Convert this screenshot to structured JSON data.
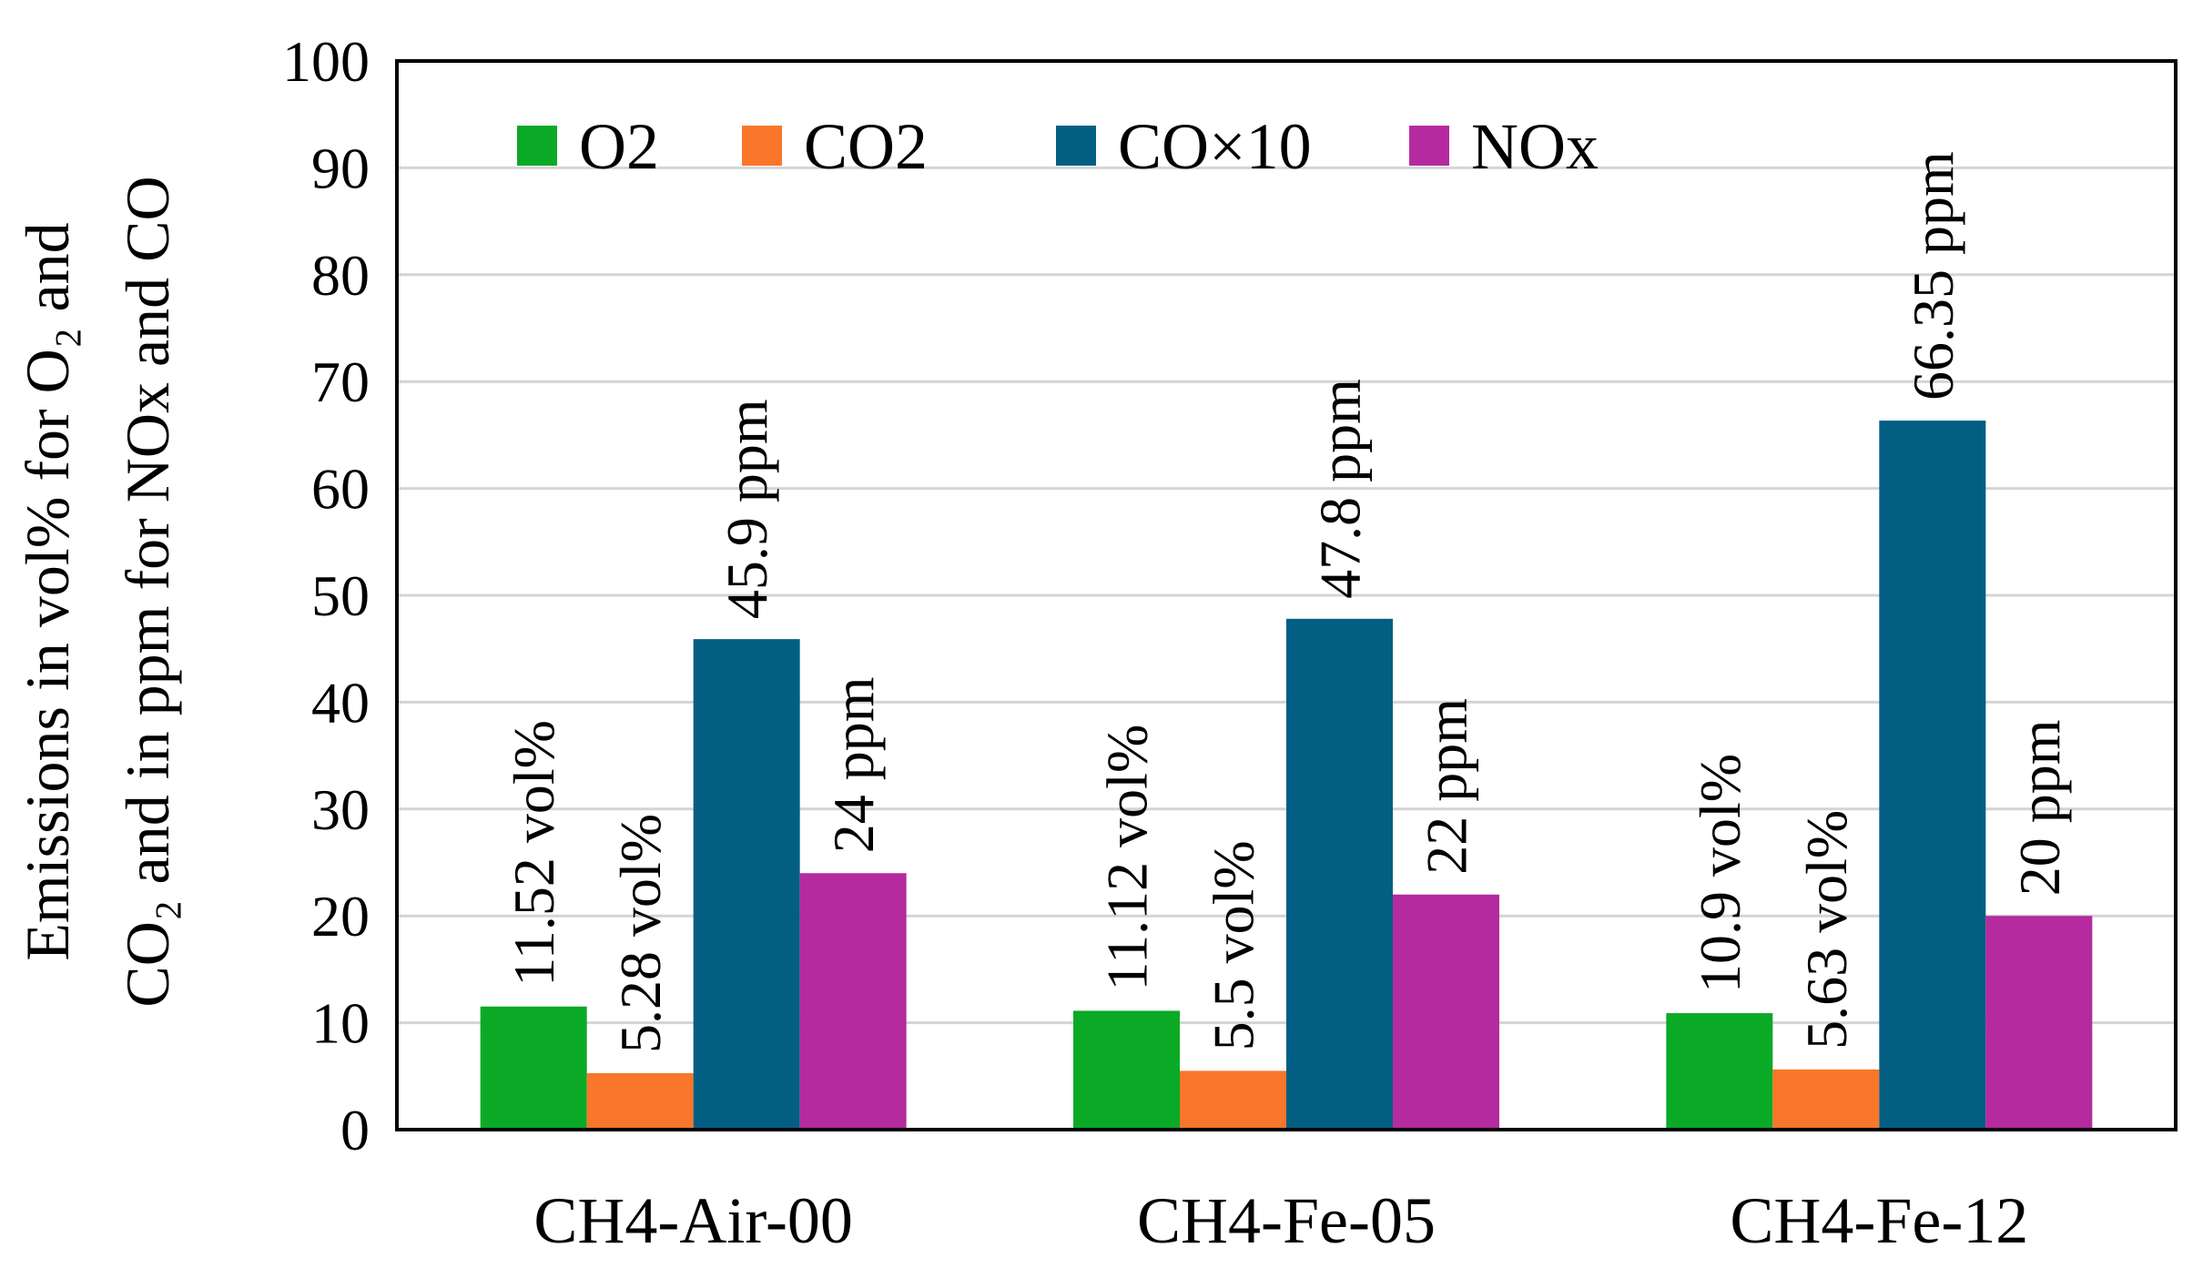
{
  "chart_data": {
    "type": "bar",
    "title": "",
    "xlabel": "",
    "ylabel_line1": "Emissions in vol% for O₂ and",
    "ylabel_line2": "CO₂ and in ppm for NOx and CO",
    "ylim": [
      0,
      100
    ],
    "yticks": [
      "0",
      "10",
      "20",
      "30",
      "40",
      "50",
      "60",
      "70",
      "80",
      "90",
      "100"
    ],
    "grid": true,
    "legend_position": "top",
    "categories": [
      "CH4-Air-00",
      "CH4-Fe-05",
      "CH4-Fe-12"
    ],
    "series": [
      {
        "name": "O2",
        "color": "#0aaa27",
        "values": [
          11.52,
          11.12,
          10.9
        ],
        "labels": [
          "11.52 vol%",
          "11.12 vol%",
          "10.9 vol%"
        ]
      },
      {
        "name": "CO2",
        "color": "#f9762a",
        "values": [
          5.28,
          5.5,
          5.63
        ],
        "labels": [
          "5.28 vol%",
          "5.5 vol%",
          "5.63 vol%"
        ]
      },
      {
        "name": "CO×10",
        "color": "#025f83",
        "values": [
          45.9,
          47.8,
          66.35
        ],
        "labels": [
          "45.9 ppm",
          "47.8 ppm",
          "66.35 ppm"
        ]
      },
      {
        "name": "NOx",
        "color": "#b52b9f",
        "values": [
          24,
          22,
          20
        ],
        "labels": [
          "24 ppm",
          "22 ppm",
          "20 ppm"
        ]
      }
    ]
  }
}
